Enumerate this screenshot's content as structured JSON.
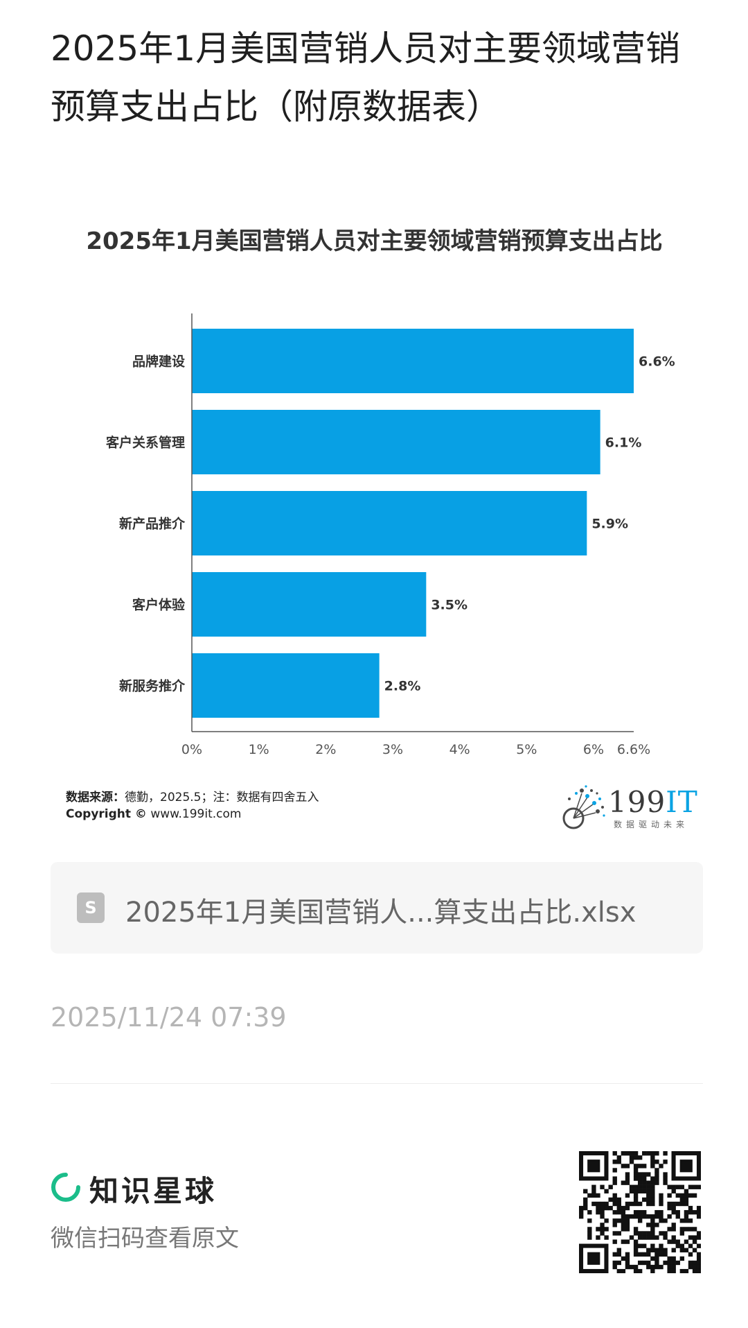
{
  "page": {
    "title": "2025年1月美国营销人员对主要领域营销预算支出占比（附原数据表）"
  },
  "chart_data": {
    "type": "bar",
    "orientation": "horizontal",
    "title": "2025年1月美国营销人员对主要领域营销预算支出占比",
    "categories": [
      "品牌建设",
      "客户关系管理",
      "新产品推介",
      "客户体验",
      "新服务推介"
    ],
    "values": [
      6.6,
      6.1,
      5.9,
      3.5,
      2.8
    ],
    "value_labels": [
      "6.6%",
      "6.1%",
      "5.9%",
      "3.5%",
      "2.8%"
    ],
    "x_ticks": [
      0,
      1,
      2,
      3,
      4,
      5,
      6,
      6.6
    ],
    "x_tick_labels": [
      "0%",
      "1%",
      "2%",
      "3%",
      "4%",
      "5%",
      "6%",
      "6.6%"
    ],
    "xlim": [
      0,
      6.6
    ],
    "xlabel": "",
    "ylabel": "",
    "grid": false,
    "bar_color": "#08a0e4"
  },
  "chart_footer": {
    "source_label": "数据来源：",
    "source_text": "德勤，2025.5；注：数据有四舍五入",
    "copyright_label": "Copyright ©",
    "copyright_text": "www.199it.com",
    "brand_number": "199",
    "brand_it": "IT",
    "brand_slogan": "数据驱动未来"
  },
  "attachment": {
    "icon": "spreadsheet-file-icon",
    "icon_letter": "S",
    "filename": "2025年1月美国营销人...算支出占比.xlsx"
  },
  "post": {
    "timestamp": "2025/11/24 07:39"
  },
  "footer": {
    "brand_name": "知识星球",
    "scan_hint": "微信扫码查看原文",
    "brand_color": "#1bbd8a"
  }
}
